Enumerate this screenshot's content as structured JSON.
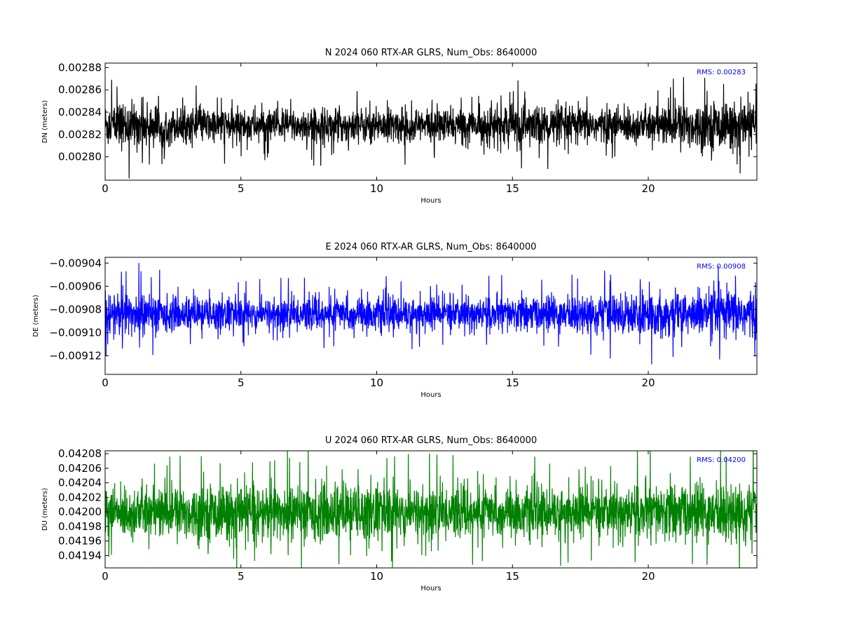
{
  "chart_data": [
    {
      "type": "line",
      "title": "N 2024 060 RTX-AR  GLRS, Num_Obs: 8640000",
      "xlabel": "Hours",
      "ylabel": "DN (meters)",
      "xlim": [
        0,
        24
      ],
      "ylim": [
        0.002779,
        0.002884
      ],
      "xticks": [
        0,
        5,
        10,
        15,
        20
      ],
      "yticks": [
        0.0028,
        0.00282,
        0.00284,
        0.00286,
        0.00288
      ],
      "ytick_labels": [
        "0.00280",
        "0.00282",
        "0.00284",
        "0.00286",
        "0.00288"
      ],
      "series": [
        {
          "color": "#000000",
          "mean": 0.002828,
          "envelope": [
            {
              "x": 0,
              "amp": 1.9e-05
            },
            {
              "x": 1.5,
              "amp": 1.8e-05
            },
            {
              "x": 2.5,
              "amp": 1.4e-05
            },
            {
              "x": 12.5,
              "amp": 1.4e-05
            },
            {
              "x": 14.0,
              "amp": 1.4e-05
            },
            {
              "x": 15.0,
              "amp": 1.9e-05
            },
            {
              "x": 16.0,
              "amp": 1.6e-05
            },
            {
              "x": 20.0,
              "amp": 1.4e-05
            },
            {
              "x": 21.0,
              "amp": 1.9e-05
            },
            {
              "x": 24.0,
              "amp": 1.9e-05
            }
          ]
        }
      ],
      "annotation": "RMS:  0.00283"
    },
    {
      "type": "line",
      "title": "E 2024 060 RTX-AR  GLRS, Num_Obs: 8640000",
      "xlabel": "Hours",
      "ylabel": "DE (meters)",
      "xlim": [
        0,
        24
      ],
      "ylim": [
        -0.009136,
        -0.009035
      ],
      "xticks": [
        0,
        5,
        10,
        15,
        20
      ],
      "yticks": [
        -0.00904,
        -0.00906,
        -0.00908,
        -0.0091,
        -0.00912
      ],
      "ytick_labels": [
        "−0.00904",
        "−0.00906",
        "−0.00908",
        "−0.00910",
        "−0.00912"
      ],
      "series": [
        {
          "color": "#0000ff",
          "mean": -0.009084,
          "envelope": [
            {
              "x": 0,
              "amp": 1.9e-05
            },
            {
              "x": 1.5,
              "amp": 1.7e-05
            },
            {
              "x": 2.5,
              "amp": 1.3e-05
            },
            {
              "x": 15.0,
              "amp": 1.3e-05
            },
            {
              "x": 18.0,
              "amp": 1.5e-05
            },
            {
              "x": 21.0,
              "amp": 1.7e-05
            },
            {
              "x": 24.0,
              "amp": 2e-05
            }
          ]
        }
      ],
      "annotation": "RMS:  0.00908"
    },
    {
      "type": "line",
      "title": "U 2024 060 RTX-AR  GLRS, Num_Obs: 8640000",
      "xlabel": "Hours",
      "ylabel": "DU (meters)",
      "xlim": [
        0,
        24
      ],
      "ylim": [
        0.041923,
        0.042084
      ],
      "xticks": [
        0,
        5,
        10,
        15,
        20
      ],
      "yticks": [
        0.04194,
        0.04196,
        0.04198,
        0.042,
        0.04202,
        0.04204,
        0.04206,
        0.04208
      ],
      "ytick_labels": [
        "0.04194",
        "0.04196",
        "0.04198",
        "0.04200",
        "0.04202",
        "0.04204",
        "0.04206",
        "0.04208"
      ],
      "series": [
        {
          "color": "#008000",
          "mean": 0.041999,
          "envelope": [
            {
              "x": 0,
              "amp": 3e-05
            },
            {
              "x": 2.0,
              "amp": 3.4e-05
            },
            {
              "x": 10.0,
              "amp": 3.6e-05
            },
            {
              "x": 15.0,
              "amp": 3e-05
            },
            {
              "x": 20.0,
              "amp": 3.4e-05
            },
            {
              "x": 24.0,
              "amp": 3.8e-05
            }
          ]
        }
      ],
      "annotation": "RMS:  0.04200"
    }
  ]
}
